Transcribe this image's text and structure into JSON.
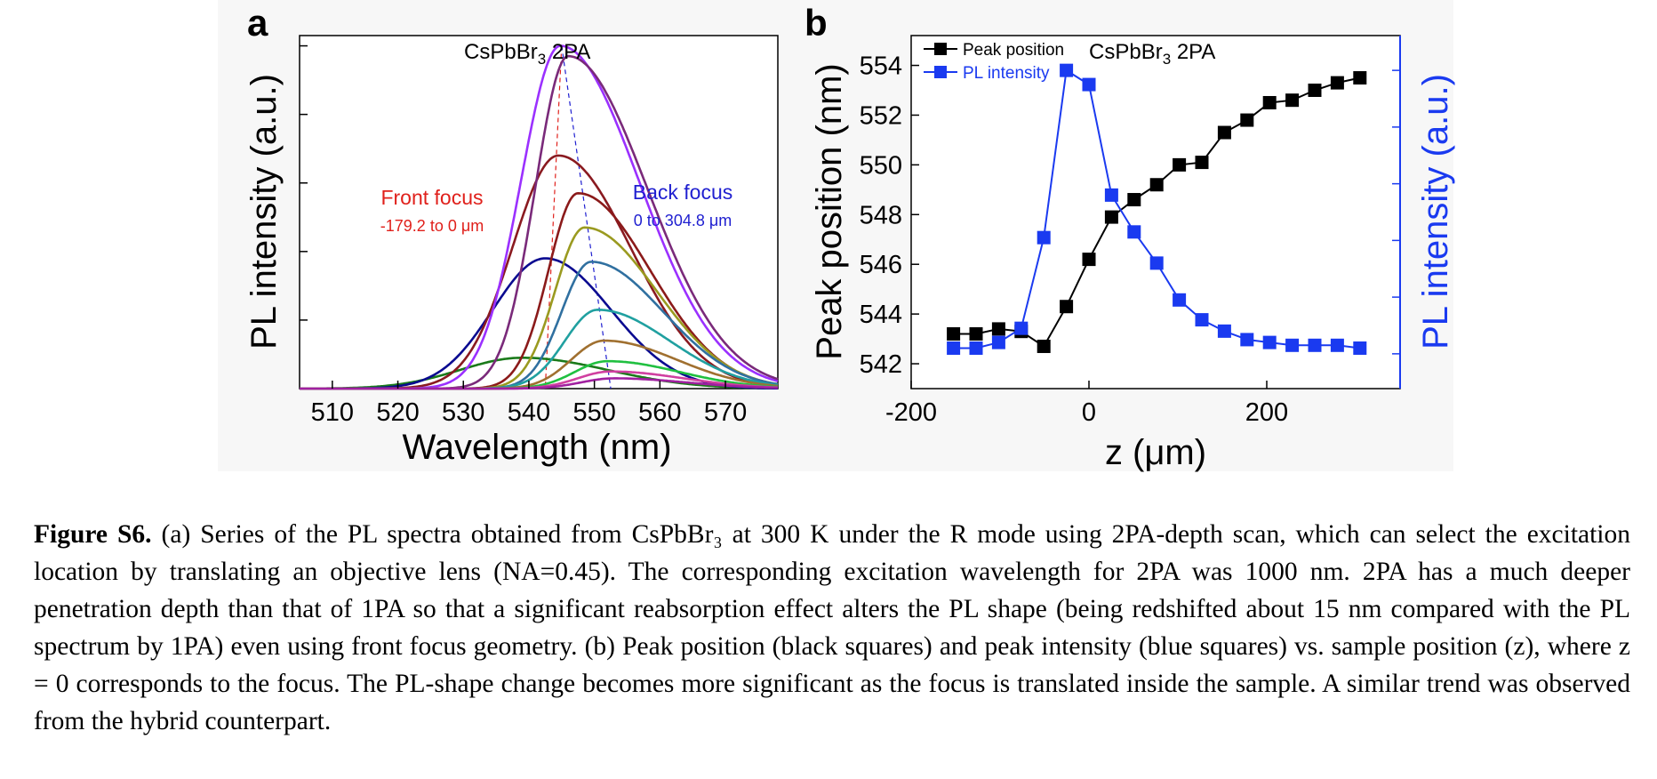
{
  "chart_data": [
    {
      "panel": "a",
      "type": "line",
      "title": "CsPbBr3 2PA",
      "title_main": "CsPbBr",
      "title_sub": "3",
      "title_tail": " 2PA",
      "xlabel": "Wavelength (nm)",
      "ylabel": "PL intensity (a.u.)",
      "xlim": [
        505,
        578
      ],
      "ylim": [
        0,
        1.03
      ],
      "xticks": [
        510,
        520,
        530,
        540,
        550,
        560,
        570
      ],
      "annotations": {
        "front_title": "Front focus",
        "front_range": "-179.2 to 0 μm",
        "back_title": "Back focus",
        "back_range": "0 to 304.8 μm"
      },
      "colors": {
        "front": "#e0201b",
        "back": "#1f1fd0"
      },
      "series": [
        {
          "color": "#1a7a1a",
          "peak": 539,
          "amp": 0.09,
          "wl": 9.5,
          "wr": 13
        },
        {
          "color": "#0a0a90",
          "peak": 542.5,
          "amp": 0.38,
          "wl": 8,
          "wr": 10
        },
        {
          "color": "#8a1a20",
          "peak": 544.5,
          "amp": 0.68,
          "wl": 7,
          "wr": 11
        },
        {
          "color": "#9b30ff",
          "peak": 544.8,
          "amp": 1.0,
          "wl": 6,
          "wr": 12
        },
        {
          "color": "#7a2a7a",
          "peak": 546,
          "amp": 0.97,
          "wl": 5,
          "wr": 12
        },
        {
          "color": "#8b1a1a",
          "peak": 547.5,
          "amp": 0.57,
          "wl": 4.5,
          "wr": 11
        },
        {
          "color": "#9a9a20",
          "peak": 548.5,
          "amp": 0.47,
          "wl": 4.5,
          "wr": 11
        },
        {
          "color": "#3070a0",
          "peak": 549.5,
          "amp": 0.37,
          "wl": 4.5,
          "wr": 11
        },
        {
          "color": "#20a0a0",
          "peak": 550.5,
          "amp": 0.23,
          "wl": 5,
          "wr": 11
        },
        {
          "color": "#a07030",
          "peak": 551.5,
          "amp": 0.14,
          "wl": 5,
          "wr": 11
        },
        {
          "color": "#20c040",
          "peak": 552,
          "amp": 0.08,
          "wl": 5,
          "wr": 11
        },
        {
          "color": "#d040a0",
          "peak": 552.5,
          "amp": 0.05,
          "wl": 5,
          "wr": 11
        },
        {
          "color": "#a020a0",
          "peak": 553,
          "amp": 0.03,
          "wl": 5,
          "wr": 11
        }
      ]
    },
    {
      "panel": "b",
      "type": "scatter",
      "title": "CsPbBr3 2PA",
      "title_main": "CsPbBr",
      "title_sub": "3",
      "title_tail": " 2PA",
      "xlabel": "z (μm)",
      "ylabel": "Peak position (nm)",
      "y2label": "PL intensity (a.u.)",
      "xlim": [
        -200,
        350
      ],
      "ylim": [
        541,
        555.2
      ],
      "xticks": [
        -200,
        0,
        200
      ],
      "yticks": [
        542,
        544,
        546,
        548,
        550,
        552,
        554
      ],
      "y2lim": [
        0,
        1.05
      ],
      "legend_position": "top-left",
      "series": [
        {
          "name": "Peak position",
          "axis": "left",
          "color": "#000000",
          "x": [
            -152.4,
            -127,
            -101.6,
            -76.2,
            -50.8,
            -25.4,
            0,
            25.4,
            50.8,
            76.2,
            101.6,
            127,
            152.4,
            177.8,
            203.2,
            228.6,
            254,
            279.4,
            304.8
          ],
          "y": [
            543.2,
            543.2,
            543.4,
            543.3,
            542.7,
            544.3,
            546.2,
            547.9,
            548.6,
            549.2,
            550.0,
            550.1,
            551.3,
            551.8,
            552.5,
            552.6,
            553.0,
            553.3,
            553.5
          ]
        },
        {
          "name": "PL intensity",
          "axis": "right",
          "color": "#1a3af0",
          "x": [
            -152.4,
            -127,
            -101.6,
            -76.2,
            -50.8,
            -25.4,
            0,
            25.4,
            50.8,
            76.2,
            101.6,
            127,
            152.4,
            177.8,
            203.2,
            228.6,
            254,
            279.4,
            304.8
          ],
          "y": [
            0.02,
            0.02,
            0.04,
            0.09,
            0.41,
            1.0,
            0.95,
            0.56,
            0.43,
            0.32,
            0.19,
            0.12,
            0.08,
            0.05,
            0.04,
            0.03,
            0.03,
            0.03,
            0.02
          ]
        }
      ]
    }
  ],
  "caption": {
    "lead": "Figure S6.",
    "text": " (a) Series of the PL spectra obtained from CsPbBr₃ at 300 K under the R mode using 2PA-depth scan, which can select the excitation location by translating an objective lens (NA=0.45). The corresponding excitation wavelength for 2PA was 1000 nm. 2PA has a much deeper penetration depth than that of 1PA so that a significant reabsorption effect alters the PL shape (being redshifted about 15 nm compared with the PL spectrum by 1PA) even using front focus geometry. (b) Peak position (black squares) and peak intensity (blue squares) vs. sample position (z), where z = 0 corresponds to the focus. The PL-shape change becomes more significant as the focus is translated inside the sample. A similar trend was observed from the hybrid counterpart."
  }
}
